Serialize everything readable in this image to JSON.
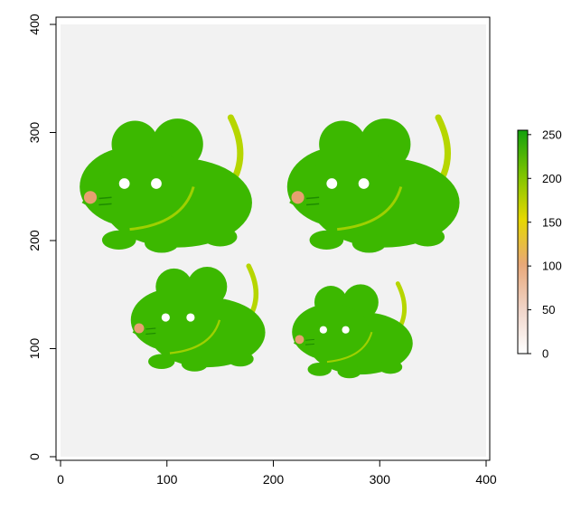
{
  "chart_data": {
    "type": "heatmap",
    "title": "",
    "xlabel": "",
    "ylabel": "",
    "xlim": [
      0,
      400
    ],
    "ylim": [
      0,
      400
    ],
    "x_ticks": [
      0,
      100,
      200,
      300,
      400
    ],
    "y_ticks": [
      0,
      100,
      200,
      300,
      400
    ],
    "grid": false,
    "legend": {
      "placement": "right",
      "range": [
        0,
        255
      ],
      "ticks": [
        0,
        50,
        100,
        150,
        200,
        250
      ]
    },
    "colors": {
      "background": "#f2f2f2",
      "body": "#3cb800",
      "tail": "#b6d600",
      "ear_dark": "#34ad00",
      "cheek": "#e6a070",
      "scale_low": "#f2f2f2",
      "scale_mid_low": "#e8a878",
      "scale_mid": "#e6d800",
      "scale_high": "#2aa800",
      "scale_top": "#13a10e"
    },
    "mice": [
      {
        "cx": 100,
        "cy": 235,
        "scale": 1.0,
        "facing": "left"
      },
      {
        "cx": 295,
        "cy": 235,
        "scale": 1.0,
        "facing": "left"
      },
      {
        "cx": 130,
        "cy": 115,
        "scale": 0.78,
        "facing": "left"
      },
      {
        "cx": 275,
        "cy": 105,
        "scale": 0.7,
        "facing": "left"
      }
    ]
  }
}
